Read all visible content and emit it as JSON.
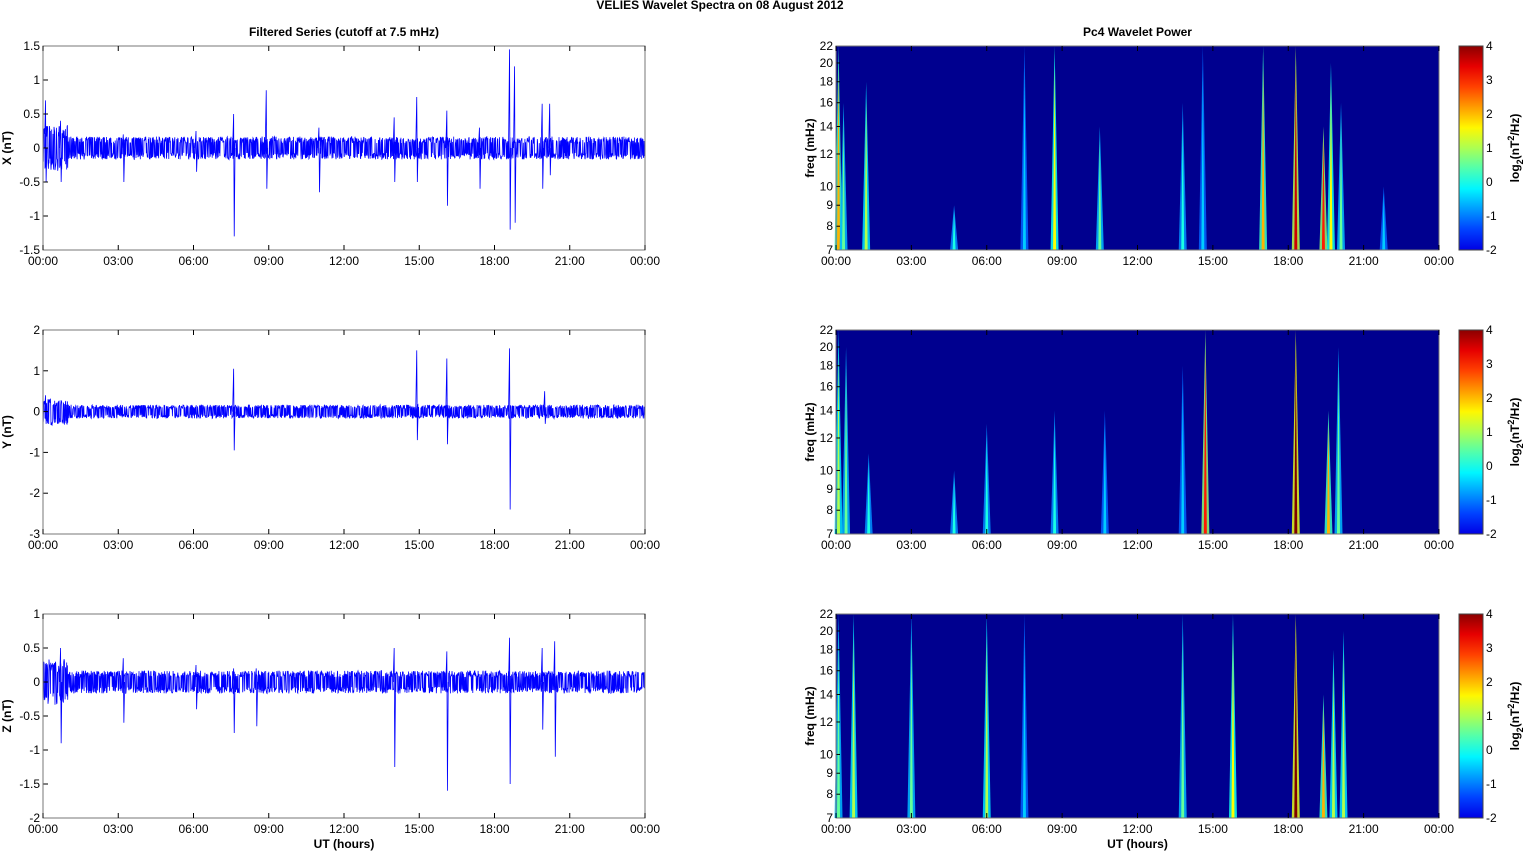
{
  "figure_title": "VELIES Wavelet Spectra on 08 August    2012",
  "chart_data": [
    {
      "type": "line",
      "title": "Filtered Series (cutoff at 7.5 mHz)",
      "ylabel": "X (nT)",
      "xlabel": "",
      "ylim": [
        -1.5,
        1.5
      ],
      "yticks": [
        "-1.5",
        "-1",
        "-0.5",
        "0",
        "0.5",
        "1",
        "1.5"
      ],
      "xticks": [
        "00:00",
        "03:00",
        "06:00",
        "09:00",
        "12:00",
        "15:00",
        "18:00",
        "21:00",
        "00:00"
      ],
      "noise_amplitude": 0.12,
      "color": "#0000ff",
      "spikes": [
        [
          0.1,
          -0.5,
          0.7
        ],
        [
          0.7,
          -0.5,
          0.4
        ],
        [
          3.2,
          -0.5,
          0.2
        ],
        [
          6.1,
          -0.35,
          0.25
        ],
        [
          7.6,
          -1.3,
          0.5
        ],
        [
          8.9,
          -0.6,
          0.85
        ],
        [
          11,
          -0.65,
          0.3
        ],
        [
          14,
          -0.5,
          0.45
        ],
        [
          14.9,
          -0.5,
          0.75
        ],
        [
          16.1,
          -0.85,
          0.55
        ],
        [
          17.4,
          -0.6,
          0.3
        ],
        [
          18.6,
          -1.2,
          1.45
        ],
        [
          18.8,
          -1.1,
          1.2
        ],
        [
          19.9,
          -0.6,
          0.65
        ],
        [
          20.2,
          -0.4,
          0.65
        ]
      ]
    },
    {
      "type": "line",
      "title": "",
      "ylabel": "Y (nT)",
      "xlabel": "",
      "ylim": [
        -3,
        2
      ],
      "yticks": [
        "-3",
        "-2",
        "-1",
        "0",
        "1",
        "2"
      ],
      "xticks": [
        "00:00",
        "03:00",
        "06:00",
        "09:00",
        "12:00",
        "15:00",
        "18:00",
        "21:00",
        "00:00"
      ],
      "noise_amplitude": 0.12,
      "color": "#0000ff",
      "spikes": [
        [
          0.1,
          -0.3,
          0.4
        ],
        [
          7.6,
          -0.95,
          1.05
        ],
        [
          14.9,
          -0.7,
          1.5
        ],
        [
          16.1,
          -0.8,
          1.3
        ],
        [
          18.6,
          -2.4,
          1.55
        ],
        [
          20,
          -0.3,
          0.5
        ]
      ]
    },
    {
      "type": "line",
      "title": "",
      "ylabel": "Z (nT)",
      "xlabel": "UT (hours)",
      "ylim": [
        -2,
        1
      ],
      "yticks": [
        "-2",
        "-1.5",
        "-1",
        "-0.5",
        "0",
        "0.5",
        "1"
      ],
      "xticks": [
        "00:00",
        "03:00",
        "06:00",
        "09:00",
        "12:00",
        "15:00",
        "18:00",
        "21:00",
        "00:00"
      ],
      "noise_amplitude": 0.12,
      "color": "#0000ff",
      "spikes": [
        [
          0.7,
          -0.9,
          0.5
        ],
        [
          3.2,
          -0.6,
          0.35
        ],
        [
          6.1,
          -0.4,
          0.25
        ],
        [
          7.6,
          -0.75,
          0.2
        ],
        [
          8.5,
          -0.65,
          0.2
        ],
        [
          14,
          -1.25,
          0.5
        ],
        [
          16.1,
          -1.6,
          0.45
        ],
        [
          18.6,
          -1.5,
          0.65
        ],
        [
          19.9,
          -0.7,
          0.5
        ],
        [
          20.4,
          -1.1,
          0.6
        ]
      ]
    },
    {
      "type": "heatmap",
      "title": "Pc4 Wavelet Power",
      "ylabel": "freq (mHz)",
      "xlabel": "",
      "ylim": [
        7,
        22
      ],
      "yscale": "log",
      "yticks": [
        "7",
        "8",
        "9",
        "10",
        "12",
        "14",
        "16",
        "18",
        "20",
        "22"
      ],
      "xticks": [
        "00:00",
        "03:00",
        "06:00",
        "09:00",
        "12:00",
        "15:00",
        "18:00",
        "21:00",
        "00:00"
      ],
      "colorbar": {
        "label": "log2(nT2/Hz)",
        "range": [
          -2,
          4
        ],
        "ticks": [
          "-2",
          "-1",
          "0",
          "1",
          "2",
          "3",
          "4"
        ]
      },
      "events": [
        [
          0.1,
          22,
          2
        ],
        [
          0.3,
          16,
          0.5
        ],
        [
          1.2,
          18,
          1
        ],
        [
          4.7,
          9,
          0
        ],
        [
          7.5,
          22,
          -0.5
        ],
        [
          8.7,
          22,
          1.5
        ],
        [
          10.5,
          14,
          0.5
        ],
        [
          13.8,
          16,
          0
        ],
        [
          14.6,
          22,
          -0.5
        ],
        [
          17,
          22,
          2
        ],
        [
          18.3,
          22,
          3.5
        ],
        [
          19.4,
          14,
          3
        ],
        [
          19.7,
          20,
          1.5
        ],
        [
          20.1,
          16,
          0.5
        ],
        [
          21.8,
          10,
          -0.5
        ]
      ]
    },
    {
      "type": "heatmap",
      "title": "",
      "ylabel": "freq (mHz)",
      "xlabel": "",
      "ylim": [
        7,
        22
      ],
      "yscale": "log",
      "yticks": [
        "7",
        "8",
        "9",
        "10",
        "12",
        "14",
        "16",
        "18",
        "20",
        "22"
      ],
      "xticks": [
        "00:00",
        "03:00",
        "06:00",
        "09:00",
        "12:00",
        "15:00",
        "18:00",
        "21:00",
        "00:00"
      ],
      "colorbar": {
        "label": "log2(nT2/Hz)",
        "range": [
          -2,
          4
        ],
        "ticks": [
          "-2",
          "-1",
          "0",
          "1",
          "2",
          "3",
          "4"
        ]
      },
      "events": [
        [
          0.1,
          22,
          1
        ],
        [
          0.4,
          20,
          0.5
        ],
        [
          1.3,
          11,
          0
        ],
        [
          4.7,
          10,
          0
        ],
        [
          6,
          13,
          0
        ],
        [
          8.7,
          14,
          0
        ],
        [
          10.7,
          14,
          -0.5
        ],
        [
          13.8,
          18,
          -0.5
        ],
        [
          14.7,
          22,
          3
        ],
        [
          18.3,
          22,
          4
        ],
        [
          19.6,
          14,
          2
        ],
        [
          20,
          20,
          0.5
        ]
      ]
    },
    {
      "type": "heatmap",
      "title": "",
      "ylabel": "freq (mHz)",
      "xlabel": "UT (hours)",
      "ylim": [
        7,
        22
      ],
      "yscale": "log",
      "yticks": [
        "7",
        "8",
        "9",
        "10",
        "12",
        "14",
        "16",
        "18",
        "20",
        "22"
      ],
      "xticks": [
        "00:00",
        "03:00",
        "06:00",
        "09:00",
        "12:00",
        "15:00",
        "18:00",
        "21:00",
        "00:00"
      ],
      "colorbar": {
        "label": "log2(nT2/Hz)",
        "range": [
          -2,
          4
        ],
        "ticks": [
          "-2",
          "-1",
          "0",
          "1",
          "2",
          "3",
          "4"
        ]
      },
      "events": [
        [
          0.1,
          22,
          0.5
        ],
        [
          0.7,
          22,
          1
        ],
        [
          3,
          22,
          0.5
        ],
        [
          6,
          22,
          1
        ],
        [
          7.5,
          22,
          -0.5
        ],
        [
          13.8,
          22,
          0.5
        ],
        [
          15.8,
          22,
          1.5
        ],
        [
          18.3,
          22,
          4
        ],
        [
          19.4,
          14,
          2
        ],
        [
          19.8,
          18,
          1
        ],
        [
          20.2,
          20,
          1
        ]
      ]
    }
  ]
}
